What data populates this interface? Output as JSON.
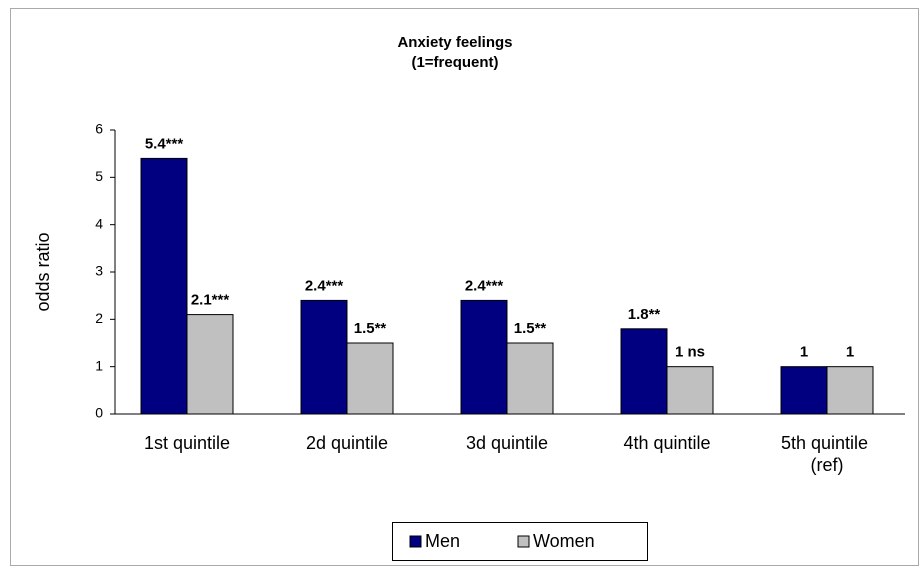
{
  "chart_data": {
    "type": "bar",
    "title": "Anxiety feelings",
    "subtitle": "(1=frequent)",
    "y_label": "odds ratio",
    "categories": [
      "1st quintile",
      "2d quintile",
      "3d quintile",
      "4th quintile",
      "5th quintile (ref)"
    ],
    "series": [
      {
        "name": "Men",
        "color": "#000080",
        "values": [
          5.4,
          2.4,
          2.4,
          1.8,
          1
        ],
        "value_labels": [
          "5.4***",
          "2.4***",
          "2.4***",
          "1.8**",
          "1"
        ]
      },
      {
        "name": "Women",
        "color": "#c0c0c0",
        "values": [
          2.1,
          1.5,
          1.5,
          1,
          1
        ],
        "value_labels": [
          "2.1***",
          "1.5**",
          "1.5**",
          "1 ns",
          "1"
        ]
      }
    ],
    "ylim": [
      0,
      6
    ],
    "yticks": [
      0,
      1,
      2,
      3,
      4,
      5,
      6
    ],
    "grid": false,
    "legend": "bottom"
  }
}
